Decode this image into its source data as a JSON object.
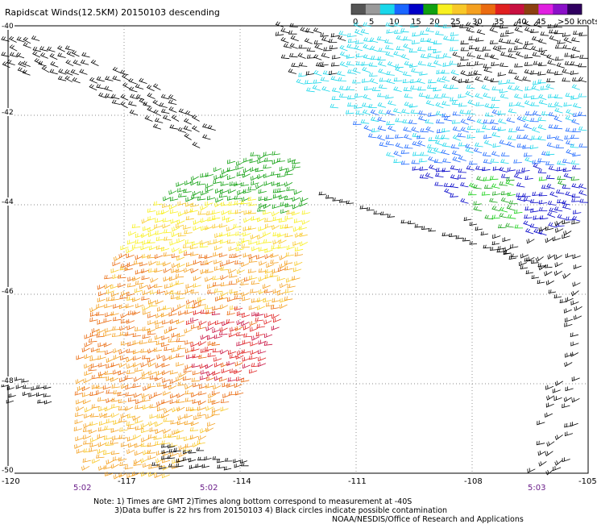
{
  "title": "Rapidscat Winds(12.5KM) 20150103 descending",
  "legend": {
    "labels": [
      "0",
      "5",
      "10",
      "15",
      "20",
      "25",
      "30",
      "35",
      "40",
      "45",
      ">50 knots"
    ],
    "colors": [
      "#555555",
      "#9a9a9a",
      "#19d7ea",
      "#1a66ff",
      "#0000c8",
      "#10a010",
      "#f8f020",
      "#f8c828",
      "#f4a020",
      "#ea6b10",
      "#e02020",
      "#c81040",
      "#8c4010",
      "#e020e0",
      "#8a10c8",
      "#300060"
    ]
  },
  "map": {
    "lat_labels": [
      "-40",
      "-42",
      "-44",
      "-46",
      "-48",
      "-50"
    ],
    "lon_labels": [
      "-120",
      "-117",
      "-114",
      "-111",
      "-108",
      "-105"
    ],
    "times": [
      "5:02",
      "5:02",
      "5:03"
    ]
  },
  "notes": {
    "line1": "Note: 1) Times are GMT 2)Times along bottom correspond to measurement at -40S",
    "line2": "3)Data buffer is 22 hrs from 20150103 4) Black circles indicate possible contamination",
    "line3": "NOAA/NESDIS/Office of Research and Applications"
  }
}
